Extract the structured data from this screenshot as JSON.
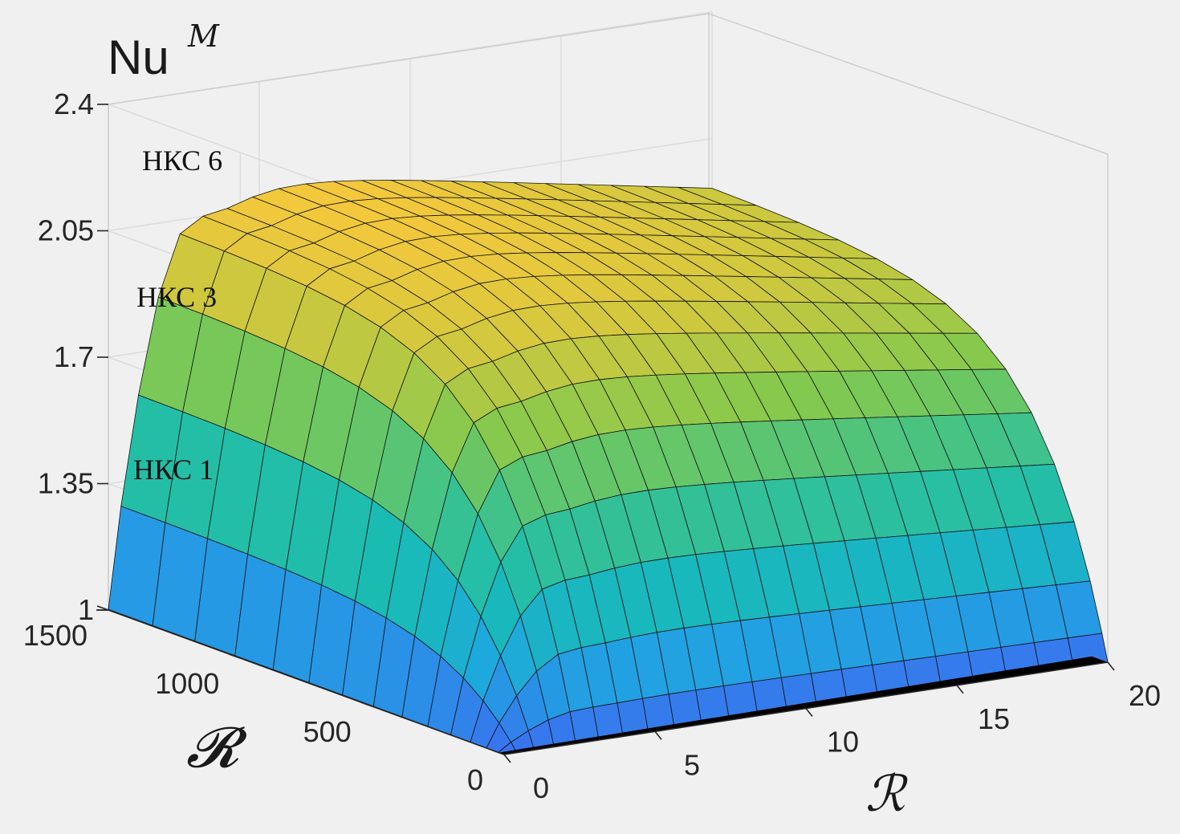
{
  "chart_data": {
    "type": "surface3d",
    "z_axis": {
      "label": "Nu",
      "label_superscript": "M",
      "ticks": [
        "1",
        "1.35",
        "1.7",
        "2.05",
        "2.4"
      ],
      "range": [
        1,
        2.4
      ]
    },
    "r_axis": {
      "label": "𝓡",
      "ticks": [
        "0",
        "500",
        "1000",
        "1500"
      ],
      "range": [
        0,
        1500
      ]
    },
    "x_axis": {
      "label": "ℛ",
      "ticks": [
        "0",
        "5",
        "10",
        "15",
        "20"
      ],
      "range": [
        0,
        20
      ]
    },
    "annotations": [
      "НКС 6",
      "НКС 3",
      "НКС 1"
    ],
    "series": [
      {
        "name": "НКС 6",
        "plateau": 2.22,
        "peak": 2.28,
        "colors": [
          "#f2dd3c",
          "#f4b53a"
        ]
      },
      {
        "name": "НКС 3",
        "plateau": 1.72,
        "peak": 1.76,
        "colors": [
          "#5cc76a",
          "#28b49a"
        ]
      },
      {
        "name": "НКС 1",
        "plateau": 1.56,
        "peak": 1.58,
        "colors": [
          "#3c8ef0",
          "#20b8c8"
        ]
      }
    ],
    "colormap": [
      "#3b6ff0",
      "#1fa7e0",
      "#18bcb4",
      "#3ec28c",
      "#84c94e",
      "#d0c83e",
      "#f8c83c",
      "#f5a93a"
    ],
    "grid": true
  }
}
